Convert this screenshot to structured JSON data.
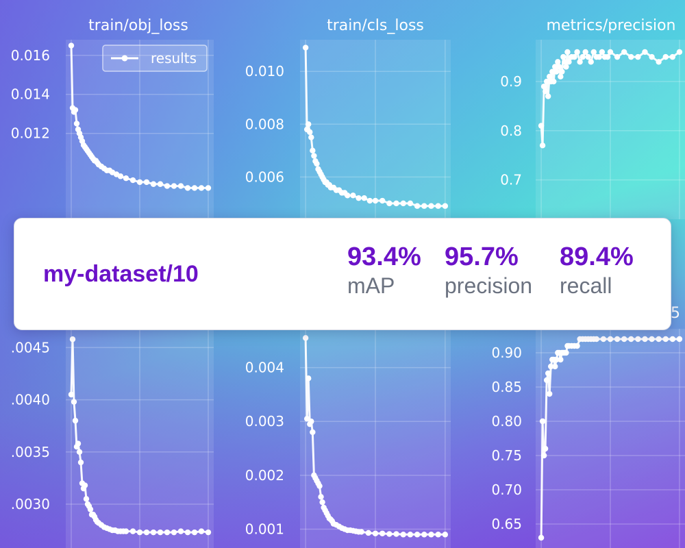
{
  "card": {
    "dataset": "my-dataset/10",
    "stats": [
      {
        "value": "93.4%",
        "label": "mAP"
      },
      {
        "value": "95.7%",
        "label": "precision"
      },
      {
        "value": "89.4%",
        "label": "recall"
      }
    ]
  },
  "colors": {
    "accent": "#6b12c8",
    "label_gray": "#6b7280",
    "line": "#ffffff"
  },
  "chart_data": [
    {
      "type": "line",
      "title": "train/obj_loss",
      "legend": "results",
      "yticks": [
        "0.016",
        "0.014",
        "0.012"
      ],
      "tick_values": [
        0.016,
        0.014,
        0.012
      ],
      "ylim": [
        0.0076,
        0.0168
      ],
      "xlim": [
        -4,
        104
      ],
      "x": [
        0,
        1,
        2,
        3,
        4,
        5,
        6,
        7,
        8,
        9,
        10,
        11,
        12,
        13,
        14,
        15,
        16,
        17,
        18,
        19,
        20,
        22,
        24,
        26,
        28,
        30,
        33,
        36,
        40,
        45,
        50,
        55,
        60,
        65,
        70,
        75,
        80,
        85,
        90,
        95,
        100
      ],
      "values": [
        0.0165,
        0.0133,
        0.0131,
        0.0132,
        0.0125,
        0.0122,
        0.012,
        0.0118,
        0.0116,
        0.0114,
        0.0113,
        0.0112,
        0.0111,
        0.011,
        0.0109,
        0.0108,
        0.0107,
        0.0106,
        0.0106,
        0.0105,
        0.0104,
        0.0103,
        0.0102,
        0.0101,
        0.0101,
        0.01,
        0.0099,
        0.0098,
        0.0097,
        0.0096,
        0.0095,
        0.0095,
        0.0094,
        0.0094,
        0.0093,
        0.0093,
        0.0093,
        0.0092,
        0.0092,
        0.0092,
        0.0092
      ]
    },
    {
      "type": "line",
      "title": "train/cls_loss",
      "yticks": [
        "0.010",
        "0.008",
        "0.006"
      ],
      "tick_values": [
        0.01,
        0.008,
        0.006
      ],
      "ylim": [
        0.0044,
        0.0112
      ],
      "xlim": [
        -4,
        104
      ],
      "x": [
        0,
        1,
        2,
        3,
        4,
        5,
        6,
        7,
        8,
        9,
        10,
        11,
        12,
        13,
        14,
        15,
        16,
        17,
        18,
        20,
        22,
        24,
        26,
        28,
        30,
        34,
        38,
        42,
        46,
        50,
        55,
        60,
        65,
        70,
        75,
        80,
        85,
        90,
        95,
        100
      ],
      "values": [
        0.0109,
        0.0078,
        0.008,
        0.0077,
        0.0075,
        0.007,
        0.0068,
        0.0066,
        0.0065,
        0.0063,
        0.0062,
        0.0061,
        0.006,
        0.0059,
        0.0058,
        0.0058,
        0.0057,
        0.0057,
        0.0056,
        0.0056,
        0.0055,
        0.0055,
        0.0054,
        0.0054,
        0.0053,
        0.0053,
        0.0052,
        0.0052,
        0.0051,
        0.0051,
        0.0051,
        0.005,
        0.005,
        0.005,
        0.005,
        0.0049,
        0.0049,
        0.0049,
        0.0049,
        0.0049
      ]
    },
    {
      "type": "line",
      "title": "metrics/precision",
      "yticks": [
        "0.9",
        "0.8",
        "0.7"
      ],
      "tick_values": [
        0.9,
        0.8,
        0.7
      ],
      "ylim": [
        0.62,
        0.985
      ],
      "xlim": [
        -4,
        104
      ],
      "x": [
        0,
        1,
        2,
        3,
        4,
        5,
        6,
        7,
        8,
        9,
        10,
        11,
        12,
        13,
        14,
        15,
        16,
        17,
        18,
        19,
        20,
        22,
        24,
        26,
        28,
        30,
        32,
        34,
        36,
        38,
        40,
        42,
        44,
        46,
        48,
        50,
        55,
        60,
        65,
        70,
        75,
        80,
        85,
        90,
        95,
        100
      ],
      "values": [
        0.81,
        0.77,
        0.89,
        0.88,
        0.9,
        0.87,
        0.91,
        0.9,
        0.92,
        0.9,
        0.93,
        0.92,
        0.94,
        0.93,
        0.91,
        0.92,
        0.95,
        0.94,
        0.93,
        0.96,
        0.94,
        0.95,
        0.95,
        0.96,
        0.94,
        0.95,
        0.96,
        0.95,
        0.94,
        0.96,
        0.95,
        0.95,
        0.96,
        0.95,
        0.95,
        0.96,
        0.95,
        0.96,
        0.95,
        0.95,
        0.96,
        0.95,
        0.94,
        0.95,
        0.95,
        0.96
      ]
    },
    {
      "type": "line",
      "yticks": [
        ".0045",
        ".0040",
        ".0035",
        ".0030"
      ],
      "tick_values": [
        0.0045,
        0.004,
        0.0035,
        0.003
      ],
      "ylim": [
        0.00258,
        0.00468
      ],
      "xlim": [
        -4,
        104
      ],
      "x": [
        0,
        1,
        2,
        3,
        4,
        5,
        6,
        7,
        8,
        9,
        10,
        11,
        12,
        13,
        14,
        15,
        16,
        17,
        18,
        19,
        20,
        22,
        24,
        26,
        28,
        30,
        32,
        34,
        36,
        38,
        40,
        45,
        50,
        55,
        60,
        65,
        70,
        75,
        80,
        85,
        90,
        95,
        100
      ],
      "values": [
        0.00405,
        0.00458,
        0.00398,
        0.0038,
        0.00355,
        0.00358,
        0.0035,
        0.0034,
        0.0032,
        0.00315,
        0.00318,
        0.00305,
        0.003,
        0.00298,
        0.00295,
        0.0029,
        0.0029,
        0.00288,
        0.00285,
        0.00283,
        0.00282,
        0.0028,
        0.00278,
        0.00277,
        0.00276,
        0.00275,
        0.00275,
        0.00274,
        0.00274,
        0.00274,
        0.00274,
        0.00274,
        0.00273,
        0.00273,
        0.00273,
        0.00273,
        0.00273,
        0.00273,
        0.00274,
        0.00273,
        0.00273,
        0.00274,
        0.00273
      ]
    },
    {
      "type": "line",
      "yticks": [
        "0.004",
        "0.003",
        "0.002",
        "0.001"
      ],
      "tick_values": [
        0.004,
        0.003,
        0.002,
        0.001
      ],
      "ylim": [
        0.00065,
        0.00472
      ],
      "xlim": [
        -4,
        104
      ],
      "x": [
        0,
        1,
        2,
        3,
        4,
        5,
        6,
        7,
        8,
        9,
        10,
        11,
        12,
        13,
        14,
        15,
        16,
        17,
        18,
        19,
        20,
        22,
        24,
        26,
        28,
        30,
        32,
        34,
        36,
        38,
        40,
        45,
        50,
        55,
        60,
        65,
        70,
        75,
        80,
        85,
        90,
        95,
        100
      ],
      "values": [
        0.00455,
        0.00305,
        0.0038,
        0.00295,
        0.003,
        0.0028,
        0.002,
        0.00195,
        0.0019,
        0.00185,
        0.0018,
        0.0016,
        0.0015,
        0.0014,
        0.00135,
        0.0013,
        0.00125,
        0.0012,
        0.00118,
        0.00115,
        0.0011,
        0.00108,
        0.00105,
        0.00102,
        0.001,
        0.00098,
        0.00098,
        0.00097,
        0.00096,
        0.00095,
        0.00095,
        0.00093,
        0.00092,
        0.00092,
        0.00091,
        0.00091,
        0.0009,
        0.0009,
        0.0009,
        0.0009,
        0.0009,
        0.0009,
        0.0009
      ]
    },
    {
      "type": "line",
      "title_fragment": "5",
      "yticks": [
        "0.90",
        "0.85",
        "0.80",
        "0.75",
        "0.70",
        "0.65"
      ],
      "tick_values": [
        0.9,
        0.85,
        0.8,
        0.75,
        0.7,
        0.65
      ],
      "ylim": [
        0.615,
        0.935
      ],
      "xlim": [
        -4,
        104
      ],
      "x": [
        0,
        1,
        2,
        3,
        4,
        5,
        6,
        7,
        8,
        9,
        10,
        11,
        12,
        13,
        14,
        15,
        16,
        17,
        18,
        19,
        20,
        22,
        24,
        26,
        28,
        30,
        32,
        34,
        36,
        38,
        40,
        45,
        50,
        55,
        60,
        65,
        70,
        75,
        80,
        85,
        90,
        95,
        100
      ],
      "values": [
        0.63,
        0.8,
        0.75,
        0.76,
        0.86,
        0.87,
        0.84,
        0.88,
        0.89,
        0.89,
        0.88,
        0.89,
        0.9,
        0.9,
        0.89,
        0.9,
        0.9,
        0.9,
        0.9,
        0.91,
        0.91,
        0.91,
        0.91,
        0.91,
        0.92,
        0.92,
        0.92,
        0.92,
        0.92,
        0.92,
        0.92,
        0.92,
        0.92,
        0.92,
        0.92,
        0.92,
        0.92,
        0.92,
        0.92,
        0.92,
        0.92,
        0.92,
        0.92
      ]
    }
  ]
}
